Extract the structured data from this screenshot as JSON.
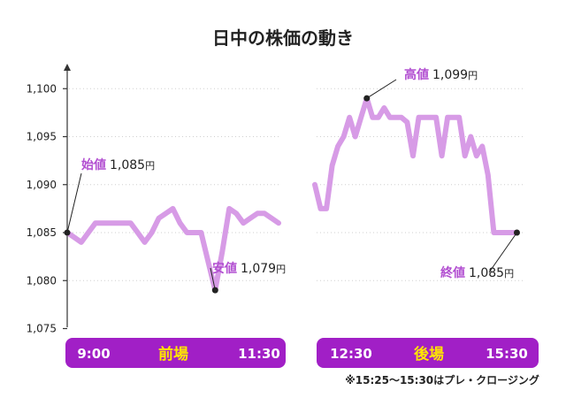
{
  "chart_data": {
    "type": "line",
    "title": "日中の株価の動き",
    "yaxis": {
      "ticks": [
        "1,100",
        "1,095",
        "1,090",
        "1,085",
        "1,080",
        "1,075"
      ],
      "tick_values": [
        1100,
        1095,
        1090,
        1085,
        1080,
        1075
      ],
      "ylim": [
        1075,
        1100
      ],
      "grid": "dotted"
    },
    "colors": {
      "line": "#d79be6",
      "label": "#b24fd1",
      "band": "#a11fc6",
      "band_title": "#ffe600",
      "band_time": "#ffffff",
      "axis": "#333333"
    },
    "sessions": [
      {
        "name": "前場",
        "start_label": "9:00",
        "end_label": "11:30",
        "start_time": "9:00",
        "end_time": "11:30",
        "series": {
          "times": [
            "9:00",
            "9:05",
            "9:10",
            "9:15",
            "9:20",
            "9:25",
            "9:30",
            "9:35",
            "9:40",
            "9:45",
            "9:50",
            "9:55",
            "10:00",
            "10:05",
            "10:10",
            "10:15",
            "10:20",
            "10:25",
            "10:30",
            "10:35",
            "10:40",
            "10:45",
            "10:50",
            "10:55",
            "11:00",
            "11:05",
            "11:10",
            "11:15",
            "11:20",
            "11:25",
            "11:30"
          ],
          "values": [
            1085,
            1084.5,
            1084,
            1085,
            1086,
            1086,
            1086,
            1086,
            1086,
            1086,
            1085,
            1084,
            1085,
            1086.5,
            1087,
            1087.5,
            1086,
            1085,
            1085,
            1085,
            1082,
            1079,
            1083,
            1087.5,
            1087,
            1086,
            1086.5,
            1087,
            1087,
            1086.5,
            1086
          ]
        },
        "annotations": [
          {
            "label": "始値",
            "value": "1,085",
            "unit": "円",
            "time": "9:00",
            "price": 1085
          },
          {
            "label": "安値",
            "value": "1,079",
            "unit": "円",
            "time": "10:45",
            "price": 1079
          }
        ]
      },
      {
        "name": "後場",
        "start_label": "12:30",
        "end_label": "15:30",
        "start_time": "12:30",
        "end_time": "15:30",
        "series": {
          "times": [
            "12:30",
            "12:35",
            "12:40",
            "12:45",
            "12:50",
            "12:55",
            "13:00",
            "13:05",
            "13:10",
            "13:15",
            "13:20",
            "13:25",
            "13:30",
            "13:35",
            "13:40",
            "13:45",
            "13:50",
            "13:55",
            "14:00",
            "14:05",
            "14:10",
            "14:15",
            "14:20",
            "14:25",
            "14:30",
            "14:35",
            "14:40",
            "14:45",
            "14:50",
            "14:55",
            "15:00",
            "15:05",
            "15:10",
            "15:15",
            "15:20",
            "15:25"
          ],
          "values": [
            1090,
            1087.5,
            1087.5,
            1092,
            1094,
            1095,
            1097,
            1095,
            1097,
            1099,
            1097,
            1097,
            1098,
            1097,
            1097,
            1097,
            1096.5,
            1093,
            1097,
            1097,
            1097,
            1097,
            1093,
            1097,
            1097,
            1097,
            1093,
            1095,
            1093,
            1094,
            1091,
            1085,
            1085,
            1085,
            1085,
            1085
          ]
        },
        "annotations": [
          {
            "label": "高値",
            "value": "1,099",
            "unit": "円",
            "time": "13:15",
            "price": 1099
          },
          {
            "label": "終値",
            "value": "1,085",
            "unit": "円",
            "time": "15:25",
            "price": 1085
          }
        ]
      }
    ],
    "footnote": "※15:25〜15:30はプレ・クロージング"
  }
}
